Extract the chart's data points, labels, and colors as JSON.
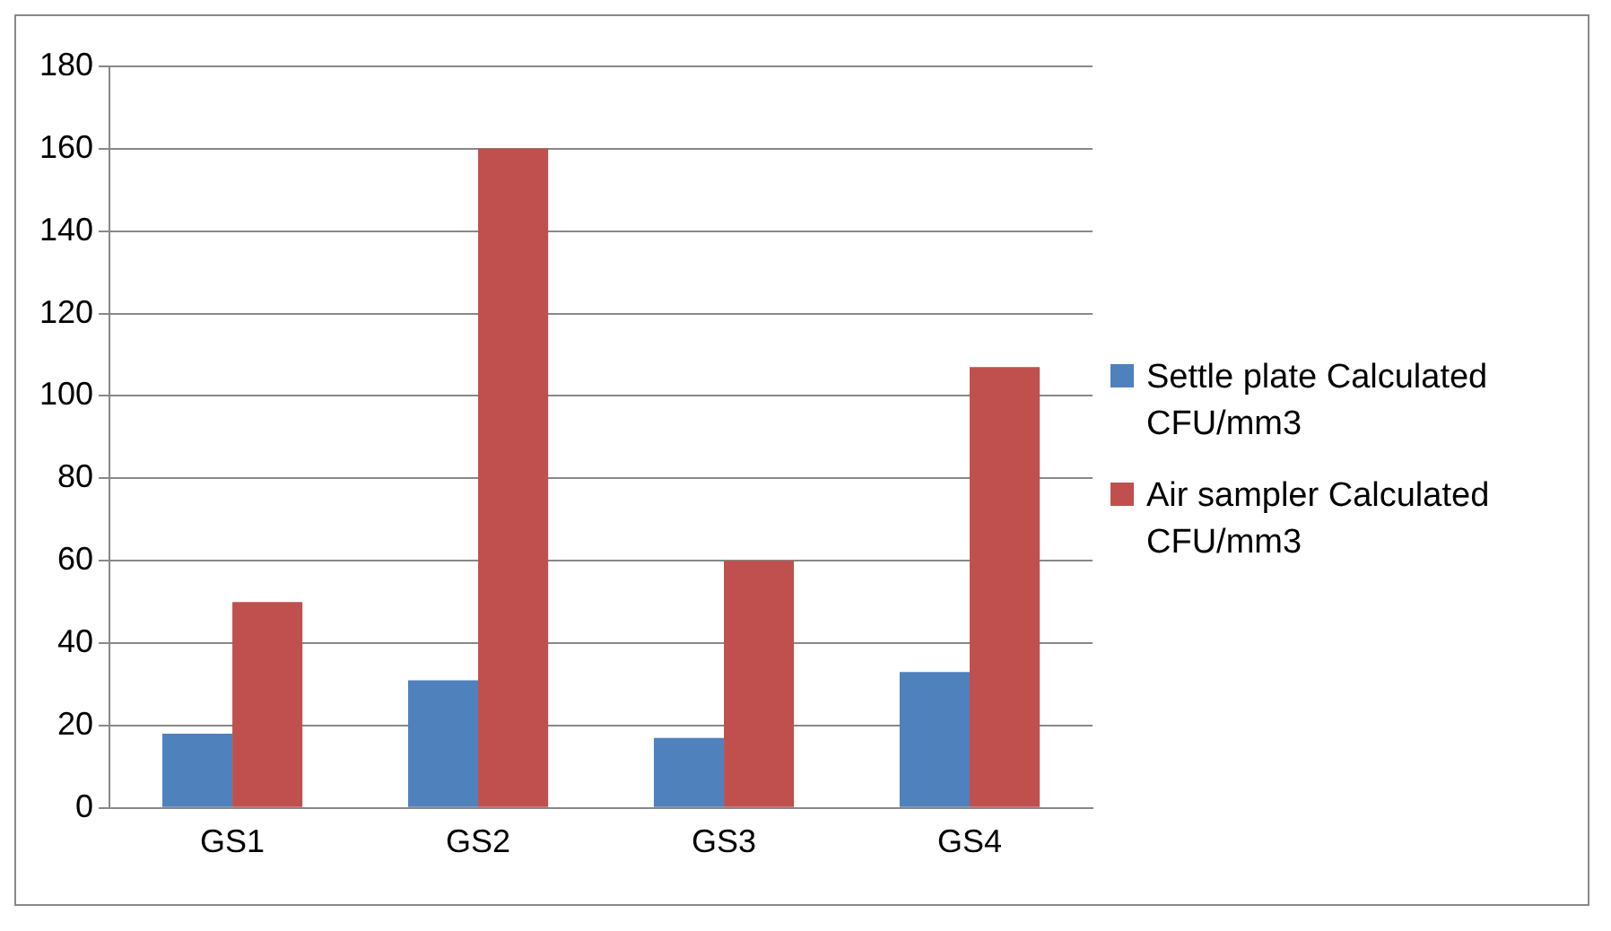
{
  "chart_data": {
    "type": "bar",
    "categories": [
      "GS1",
      "GS2",
      "GS3",
      "GS4"
    ],
    "series": [
      {
        "name": "Settle plate Calculated CFU/mm3",
        "color": "#4f81bd",
        "values": [
          18,
          31,
          17,
          33
        ]
      },
      {
        "name": "Air sampler Calculated CFU/mm3",
        "color": "#c0504d",
        "values": [
          50,
          160,
          60,
          107
        ]
      }
    ],
    "ylim": [
      0,
      180
    ],
    "yticks": [
      0,
      20,
      40,
      60,
      80,
      100,
      120,
      140,
      160,
      180
    ],
    "grid": "y",
    "legend": "right"
  }
}
